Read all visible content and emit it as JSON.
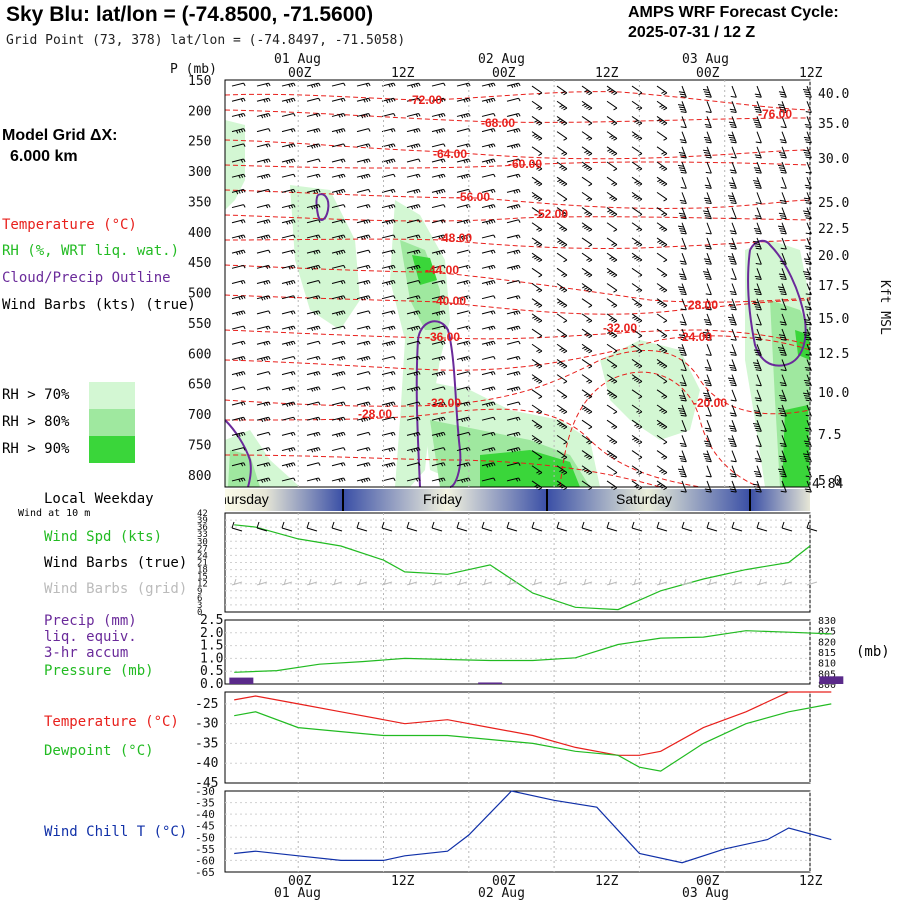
{
  "header": {
    "title": "Sky Blu:  lat/lon = (-74.8500, -71.5600)",
    "grid_point": "Grid Point (73, 378) lat/lon = (-74.8497, -71.5058)",
    "cycle_label": "AMPS WRF Forecast Cycle:",
    "cycle_value": "2025-07-31 / 12  Z"
  },
  "left_panel": {
    "model_grid_label": "Model Grid ΔX:",
    "model_grid_value": "6.000 km",
    "legend_temperature": "Temperature (°C)",
    "legend_rh": "RH (%, WRT liq. wat.)",
    "legend_cloud": "Cloud/Precip Outline",
    "legend_wind": "Wind Barbs (kts) (true)",
    "rh_70": "RH > 70%",
    "rh_80": "RH > 80%",
    "rh_90": "RH > 90%",
    "local_weekday": "Local Weekday",
    "wind_10m": "Wind at 10 m",
    "wind_spd": "Wind Spd (kts)",
    "wind_barbs_true": "Wind Barbs (true)",
    "wind_barbs_grid": "Wind Barbs (grid)",
    "precip_1": "Precip (mm)",
    "precip_2": "liq. equiv.",
    "precip_3": "3-hr accum",
    "pressure": "Pressure (mb)",
    "temperature": "Temperature (°C)",
    "dewpoint": "Dewpoint (°C)",
    "windchill": "Wind Chill T (°C)",
    "mb_unit": "(mb)"
  },
  "colors": {
    "temp_red": "#e8201c",
    "rh_green": "#22bb22",
    "cloud_purple": "#6a2a9a",
    "windchill_blue": "#1030a8",
    "rh70": "#d3f7d3",
    "rh80": "#9fe89f",
    "rh90": "#3ad63a",
    "precip_bar": "#5a2a8a"
  },
  "time_axis": {
    "top_dates": [
      "01 Aug",
      "02 Aug",
      "03 Aug"
    ],
    "hours": [
      "00Z",
      "12Z",
      "00Z",
      "12Z",
      "00Z",
      "12Z"
    ],
    "bottom_hours": [
      "00Z",
      "12Z",
      "00Z",
      "12Z",
      "00Z",
      "12Z"
    ],
    "bottom_dates": [
      "01 Aug",
      "02 Aug",
      "03 Aug"
    ],
    "weekdays": [
      "hursday",
      "Friday",
      "Saturday"
    ]
  },
  "chart_data": [
    {
      "type": "contour",
      "name_key": "skewt_profile",
      "ylabel": "P (mb)",
      "ylabel_right": "Kft MSL",
      "pressure_ticks": [
        150,
        200,
        250,
        300,
        350,
        400,
        450,
        500,
        550,
        600,
        650,
        700,
        750,
        800
      ],
      "kft_ticks": [
        "40.0",
        "35.0",
        "30.0",
        "25.0",
        "22.5",
        "20.0",
        "17.5",
        "15.0",
        "12.5",
        "10.0",
        "7.5",
        "5.0"
      ],
      "kft_extra": "4.84",
      "temp_contour_labels": [
        "-72.00",
        "-76.00",
        "-68.00",
        "-64.00",
        "-60.00",
        "-56.00",
        "-52.00",
        "-48.00",
        "-44.00",
        "-40.00",
        "-36.00",
        "-32.00",
        "-28.00",
        "-24.00",
        "-20.00",
        "-32.00",
        "-28.00"
      ]
    },
    {
      "type": "line",
      "name_key": "wind_speed",
      "ylabel": "Wind Spd (kts)",
      "yticks": [
        0,
        3,
        6,
        9,
        12,
        15,
        18,
        21,
        24,
        27,
        30,
        33,
        36,
        39,
        42
      ],
      "ylim": [
        0,
        42
      ],
      "x_hours": [
        -9,
        -6,
        0,
        6,
        12,
        15,
        21,
        27,
        33,
        39,
        45,
        51,
        57,
        63,
        69,
        72
      ],
      "values": [
        37,
        36,
        31,
        28,
        22,
        17,
        16,
        20,
        8,
        2,
        1,
        9,
        14,
        18,
        21,
        28
      ]
    },
    {
      "type": "line",
      "name_key": "precip_pressure",
      "yticks_left": [
        "0.0",
        "0.5",
        "1.0",
        "1.5",
        "2.0",
        "2.5"
      ],
      "ylim_left": [
        0,
        2.5
      ],
      "yticks_right": [
        800,
        805,
        810,
        815,
        820,
        825,
        830
      ],
      "ylim_right": [
        800,
        830
      ],
      "x_hours": [
        -9,
        -3,
        3,
        9,
        15,
        21,
        27,
        33,
        39,
        45,
        51,
        57,
        63,
        69,
        75
      ],
      "pressure": [
        805.5,
        806.3,
        809.3,
        810.5,
        812.0,
        811.5,
        811.0,
        811.0,
        812.3,
        818.5,
        821.5,
        822.0,
        825.0,
        824.3,
        823.5
      ],
      "precip": [
        {
          "x": -8,
          "value": 0.25
        },
        {
          "x": 27,
          "value": 0.06
        },
        {
          "x": 75,
          "value": 0.3
        }
      ]
    },
    {
      "type": "line",
      "name_key": "temp_dewpoint",
      "yticks": [
        -45,
        -40,
        -35,
        -30,
        -25
      ],
      "ylim": [
        -45,
        -22
      ],
      "x_hours": [
        -9,
        -6,
        0,
        6,
        12,
        15,
        21,
        27,
        33,
        39,
        45,
        48,
        51,
        57,
        63,
        69,
        75
      ],
      "temperature": [
        -24,
        -23,
        -25,
        -27,
        -29,
        -30,
        -29,
        -31,
        -33,
        -36,
        -38,
        -38,
        -37,
        -31,
        -27,
        -22,
        -22
      ],
      "dewpoint": [
        -28,
        -27,
        -31,
        -32,
        -33,
        -33,
        -33,
        -34,
        -35,
        -37,
        -38,
        -41,
        -42,
        -35,
        -30,
        -27,
        -25
      ]
    },
    {
      "type": "line",
      "name_key": "wind_chill",
      "yticks": [
        -65,
        -60,
        -55,
        -50,
        -45,
        -40,
        -35,
        -30
      ],
      "ylim": [
        -65,
        -30
      ],
      "x_hours": [
        -9,
        -6,
        0,
        6,
        12,
        15,
        21,
        24,
        30,
        36,
        42,
        48,
        54,
        60,
        66,
        69,
        75
      ],
      "values": [
        -57,
        -56,
        -58,
        -60,
        -60,
        -58,
        -56,
        -49,
        -30,
        -34,
        -37,
        -57,
        -61,
        -55,
        -51,
        -46,
        -51
      ]
    }
  ]
}
